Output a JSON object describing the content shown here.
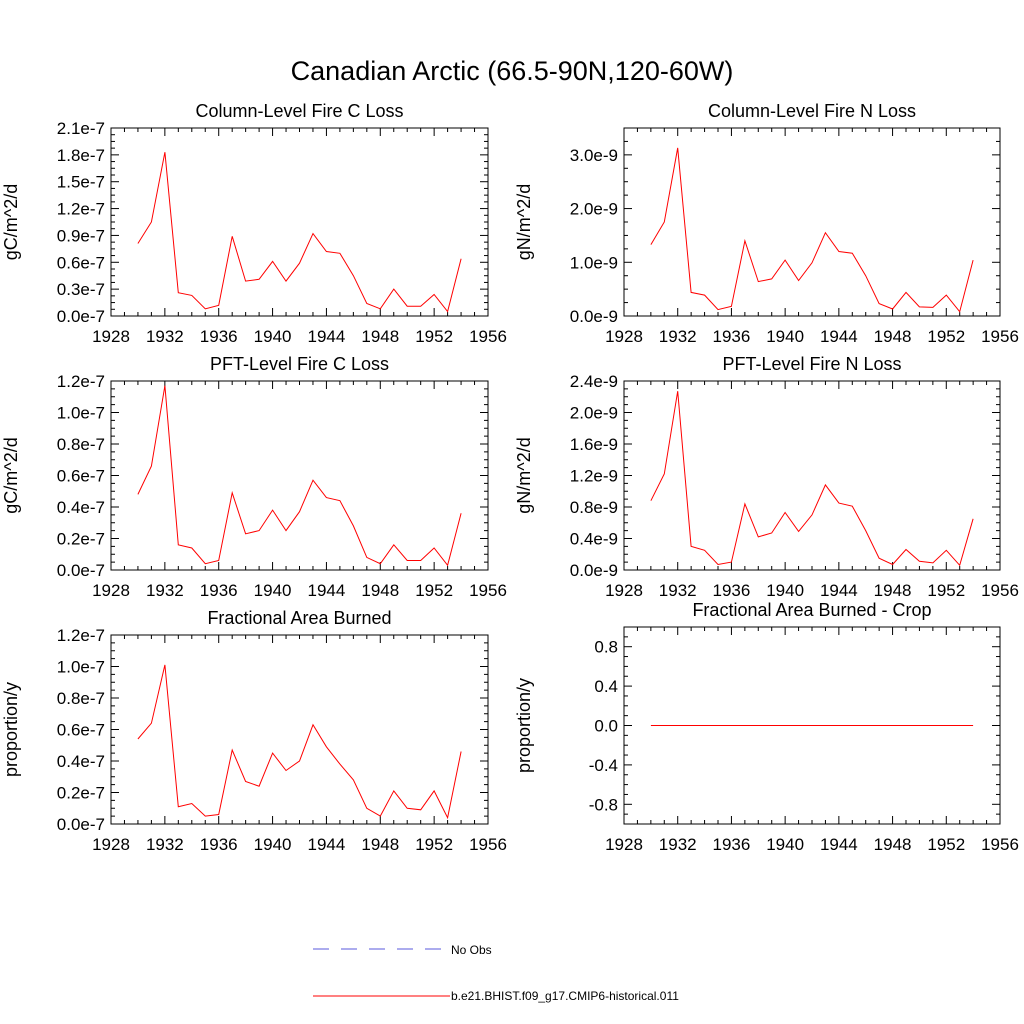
{
  "figure": {
    "title": "Canadian Arctic (66.5-90N,120-60W)",
    "legend": [
      {
        "label": "No Obs",
        "color": "#5a5adc",
        "dash": true
      },
      {
        "label": "b.e21.BHIST.f09_g17.CMIP6-historical.011",
        "color": "#ff0000",
        "dash": false
      }
    ]
  },
  "chart_data": [
    {
      "type": "line",
      "title": "Column-Level Fire C Loss",
      "ylabel": "gC/m^2/d",
      "xlim": [
        1928,
        1956
      ],
      "ylim": [
        0,
        2.1e-07
      ],
      "xticks": [
        1928,
        1932,
        1936,
        1940,
        1944,
        1948,
        1952,
        1956
      ],
      "yticks": [
        0,
        3e-08,
        6e-08,
        9e-08,
        1.2e-07,
        1.5e-07,
        1.8e-07,
        2.1e-07
      ],
      "ytick_labels": [
        "0.0e-7",
        "0.3e-7",
        "0.6e-7",
        "0.9e-7",
        "1.2e-7",
        "1.5e-7",
        "1.8e-7",
        "2.1e-7"
      ],
      "x": [
        1930,
        1931,
        1932,
        1933,
        1934,
        1935,
        1936,
        1937,
        1938,
        1939,
        1940,
        1941,
        1942,
        1943,
        1944,
        1945,
        1946,
        1947,
        1948,
        1949,
        1950,
        1951,
        1952,
        1953,
        1954
      ],
      "series": [
        {
          "color": "#ff0000",
          "values": [
            8.1e-08,
            1.05e-07,
            1.83e-07,
            2.6e-08,
            2.3e-08,
            8e-09,
            1.2e-08,
            8.9e-08,
            3.9e-08,
            4.1e-08,
            6.1e-08,
            3.9e-08,
            5.9e-08,
            9.2e-08,
            7.2e-08,
            7e-08,
            4.5e-08,
            1.4e-08,
            8e-09,
            3e-08,
            1.1e-08,
            1.1e-08,
            2.4e-08,
            5e-09,
            6.4e-08
          ]
        }
      ]
    },
    {
      "type": "line",
      "title": "Column-Level Fire N Loss",
      "ylabel": "gN/m^2/d",
      "xlim": [
        1928,
        1956
      ],
      "ylim": [
        0,
        3.5e-09
      ],
      "xticks": [
        1928,
        1932,
        1936,
        1940,
        1944,
        1948,
        1952,
        1956
      ],
      "yticks": [
        0,
        1e-09,
        2e-09,
        3e-09
      ],
      "ytick_labels": [
        "0.0e-9",
        "1.0e-9",
        "2.0e-9",
        "3.0e-9"
      ],
      "x": [
        1930,
        1931,
        1932,
        1933,
        1934,
        1935,
        1936,
        1937,
        1938,
        1939,
        1940,
        1941,
        1942,
        1943,
        1944,
        1945,
        1946,
        1947,
        1948,
        1949,
        1950,
        1951,
        1952,
        1953,
        1954
      ],
      "series": [
        {
          "color": "#ff0000",
          "values": [
            1.33e-09,
            1.75e-09,
            3.13e-09,
            4.4e-10,
            3.9e-10,
            1.2e-10,
            1.8e-10,
            1.4e-09,
            6.4e-10,
            6.9e-10,
            1.04e-09,
            6.6e-10,
            9.9e-10,
            1.55e-09,
            1.2e-09,
            1.17e-09,
            7.5e-10,
            2.3e-10,
            1.3e-10,
            4.4e-10,
            1.7e-10,
            1.6e-10,
            3.9e-10,
            8e-11,
            1.04e-09
          ]
        }
      ]
    },
    {
      "type": "line",
      "title": "PFT-Level Fire C Loss",
      "ylabel": "gC/m^2/d",
      "xlim": [
        1928,
        1956
      ],
      "ylim": [
        0,
        1.2e-07
      ],
      "xticks": [
        1928,
        1932,
        1936,
        1940,
        1944,
        1948,
        1952,
        1956
      ],
      "yticks": [
        0,
        2e-08,
        4e-08,
        6e-08,
        8e-08,
        1e-07,
        1.2e-07
      ],
      "ytick_labels": [
        "0.0e-7",
        "0.2e-7",
        "0.4e-7",
        "0.6e-7",
        "0.8e-7",
        "1.0e-7",
        "1.2e-7"
      ],
      "x": [
        1930,
        1931,
        1932,
        1933,
        1934,
        1935,
        1936,
        1937,
        1938,
        1939,
        1940,
        1941,
        1942,
        1943,
        1944,
        1945,
        1946,
        1947,
        1948,
        1949,
        1950,
        1951,
        1952,
        1953,
        1954
      ],
      "series": [
        {
          "color": "#ff0000",
          "values": [
            4.8e-08,
            6.6e-08,
            1.17e-07,
            1.6e-08,
            1.4e-08,
            4e-09,
            6e-09,
            4.9e-08,
            2.3e-08,
            2.5e-08,
            3.8e-08,
            2.5e-08,
            3.7e-08,
            5.7e-08,
            4.6e-08,
            4.4e-08,
            2.8e-08,
            8e-09,
            4e-09,
            1.6e-08,
            6e-09,
            6e-09,
            1.4e-08,
            3e-09,
            3.6e-08
          ]
        }
      ]
    },
    {
      "type": "line",
      "title": "PFT-Level Fire N Loss",
      "ylabel": "gN/m^2/d",
      "xlim": [
        1928,
        1956
      ],
      "ylim": [
        0,
        2.4e-09
      ],
      "xticks": [
        1928,
        1932,
        1936,
        1940,
        1944,
        1948,
        1952,
        1956
      ],
      "yticks": [
        0,
        4e-10,
        8e-10,
        1.2e-09,
        1.6e-09,
        2e-09,
        2.4e-09
      ],
      "ytick_labels": [
        "0.0e-9",
        "0.4e-9",
        "0.8e-9",
        "1.2e-9",
        "1.6e-9",
        "2.0e-9",
        "2.4e-9"
      ],
      "x": [
        1930,
        1931,
        1932,
        1933,
        1934,
        1935,
        1936,
        1937,
        1938,
        1939,
        1940,
        1941,
        1942,
        1943,
        1944,
        1945,
        1946,
        1947,
        1948,
        1949,
        1950,
        1951,
        1952,
        1953,
        1954
      ],
      "series": [
        {
          "color": "#ff0000",
          "values": [
            8.8e-10,
            1.22e-09,
            2.27e-09,
            3e-10,
            2.5e-10,
            7e-11,
            1e-10,
            8.4e-10,
            4.2e-10,
            4.7e-10,
            7.3e-10,
            4.9e-10,
            7e-10,
            1.08e-09,
            8.5e-10,
            8.1e-10,
            5e-10,
            1.5e-10,
            7e-11,
            2.6e-10,
            1.1e-10,
            9e-11,
            2.5e-10,
            6e-11,
            6.5e-10
          ]
        }
      ]
    },
    {
      "type": "line",
      "title": "Fractional Area Burned",
      "ylabel": "proportion/y",
      "xlim": [
        1928,
        1956
      ],
      "ylim": [
        0,
        1.2e-07
      ],
      "xticks": [
        1928,
        1932,
        1936,
        1940,
        1944,
        1948,
        1952,
        1956
      ],
      "yticks": [
        0,
        2e-08,
        4e-08,
        6e-08,
        8e-08,
        1e-07,
        1.2e-07
      ],
      "ytick_labels": [
        "0.0e-7",
        "0.2e-7",
        "0.4e-7",
        "0.6e-7",
        "0.8e-7",
        "1.0e-7",
        "1.2e-7"
      ],
      "x": [
        1930,
        1931,
        1932,
        1933,
        1934,
        1935,
        1936,
        1937,
        1938,
        1939,
        1940,
        1941,
        1942,
        1943,
        1944,
        1945,
        1946,
        1947,
        1948,
        1949,
        1950,
        1951,
        1952,
        1953,
        1954
      ],
      "series": [
        {
          "color": "#ff0000",
          "values": [
            5.4e-08,
            6.4e-08,
            1.01e-07,
            1.1e-08,
            1.3e-08,
            5e-09,
            6e-09,
            4.7e-08,
            2.7e-08,
            2.4e-08,
            4.5e-08,
            3.4e-08,
            4e-08,
            6.3e-08,
            4.9e-08,
            3.8e-08,
            2.8e-08,
            1e-08,
            5e-09,
            2.1e-08,
            1e-08,
            9e-09,
            2.1e-08,
            4e-09,
            4.6e-08
          ]
        }
      ]
    },
    {
      "type": "line",
      "title": "Fractional Area Burned - Crop",
      "ylabel": "proportion/y",
      "xlim": [
        1928,
        1956
      ],
      "ylim": [
        -1.0,
        1.0
      ],
      "xticks": [
        1928,
        1932,
        1936,
        1940,
        1944,
        1948,
        1952,
        1956
      ],
      "yticks": [
        -0.8,
        -0.4,
        0,
        0.4,
        0.8
      ],
      "ytick_labels": [
        "-0.8",
        "-0.4",
        "0.0",
        "0.4",
        "0.8"
      ],
      "x": [
        1930,
        1931,
        1932,
        1933,
        1934,
        1935,
        1936,
        1937,
        1938,
        1939,
        1940,
        1941,
        1942,
        1943,
        1944,
        1945,
        1946,
        1947,
        1948,
        1949,
        1950,
        1951,
        1952,
        1953,
        1954
      ],
      "series": [
        {
          "color": "#ff0000",
          "values": [
            0,
            0,
            0,
            0,
            0,
            0,
            0,
            0,
            0,
            0,
            0,
            0,
            0,
            0,
            0,
            0,
            0,
            0,
            0,
            0,
            0,
            0,
            0,
            0,
            0
          ]
        }
      ]
    }
  ]
}
